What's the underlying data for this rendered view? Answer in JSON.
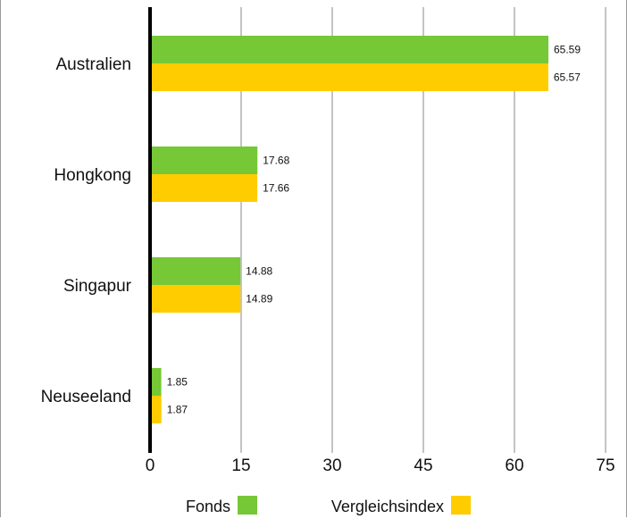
{
  "chart_data": {
    "type": "bar",
    "orientation": "horizontal",
    "categories": [
      "Australien",
      "Hongkong",
      "Singapur",
      "Neuseeland"
    ],
    "series": [
      {
        "name": "Fonds",
        "color": "#76c836",
        "values": [
          65.59,
          17.68,
          14.88,
          1.85
        ]
      },
      {
        "name": "Vergleichsindex",
        "color": "#ffcc00",
        "values": [
          65.57,
          17.66,
          14.89,
          1.87
        ]
      }
    ],
    "xlim": [
      0,
      75
    ],
    "xticks": [
      0,
      15,
      30,
      45,
      60,
      75
    ],
    "xlabel": "",
    "ylabel": "",
    "grid": true,
    "legend": "bottom"
  }
}
